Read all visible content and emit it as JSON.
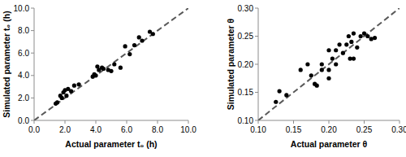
{
  "chart_data": [
    {
      "type": "scatter",
      "x_label": "Actual parameter t₀ (h)",
      "y_label": "Simulated parameter t₀ (h)",
      "x": [
        1.4,
        1.5,
        1.7,
        1.8,
        1.9,
        2.0,
        2.1,
        2.2,
        2.4,
        2.6,
        2.9,
        3.8,
        3.9,
        4.0,
        4.1,
        4.2,
        4.4,
        4.5,
        4.8,
        5.0,
        5.2,
        5.6,
        5.9,
        6.2,
        6.5,
        6.8,
        7.0,
        7.5,
        7.7
      ],
      "values": [
        1.5,
        1.6,
        2.2,
        2.0,
        2.5,
        2.7,
        2.2,
        2.8,
        2.6,
        3.1,
        3.2,
        3.9,
        4.1,
        4.0,
        4.8,
        4.5,
        4.7,
        4.6,
        4.5,
        4.4,
        5.0,
        4.7,
        6.6,
        5.9,
        6.7,
        7.4,
        7.1,
        7.9,
        7.7
      ],
      "xlim": [
        0,
        10
      ],
      "ylim": [
        0,
        10
      ],
      "xticks": [
        {
          "value": 0,
          "label": "0.0"
        },
        {
          "value": 2,
          "label": "2.0"
        },
        {
          "value": 4,
          "label": "4.0"
        },
        {
          "value": 6,
          "label": "6.0"
        },
        {
          "value": 8,
          "label": "8.0"
        },
        {
          "value": 10,
          "label": "10.0"
        }
      ],
      "yticks": [
        {
          "value": 0,
          "label": "0.0"
        },
        {
          "value": 2,
          "label": "2.0"
        },
        {
          "value": 4,
          "label": "4.0"
        },
        {
          "value": 6,
          "label": "6.0"
        },
        {
          "value": 8,
          "label": "8.0"
        },
        {
          "value": 10,
          "label": "10.0"
        }
      ],
      "color": "#000000",
      "marker": "circle",
      "line_style": "dashed"
    },
    {
      "type": "scatter",
      "x_label": "Actual parameter θ",
      "y_label": "Simulated parameter θ",
      "x": [
        0.125,
        0.13,
        0.14,
        0.16,
        0.17,
        0.175,
        0.18,
        0.183,
        0.19,
        0.19,
        0.2,
        0.2,
        0.205,
        0.21,
        0.21,
        0.2,
        0.215,
        0.22,
        0.225,
        0.228,
        0.23,
        0.232,
        0.235,
        0.235,
        0.24,
        0.245,
        0.25,
        0.255,
        0.26,
        0.265
      ],
      "values": [
        0.133,
        0.152,
        0.145,
        0.19,
        0.2,
        0.18,
        0.165,
        0.162,
        0.19,
        0.2,
        0.175,
        0.19,
        0.21,
        0.2,
        0.225,
        0.225,
        0.235,
        0.22,
        0.235,
        0.25,
        0.21,
        0.24,
        0.21,
        0.255,
        0.23,
        0.25,
        0.255,
        0.25,
        0.245,
        0.247
      ],
      "xlim": [
        0.1,
        0.3
      ],
      "ylim": [
        0.1,
        0.3
      ],
      "xticks": [
        {
          "value": 0.1,
          "label": "0.10"
        },
        {
          "value": 0.15,
          "label": "0.15"
        },
        {
          "value": 0.2,
          "label": "0.20"
        },
        {
          "value": 0.25,
          "label": "0.25"
        },
        {
          "value": 0.3,
          "label": "0.30"
        }
      ],
      "yticks": [
        {
          "value": 0.1,
          "label": "0.10"
        },
        {
          "value": 0.15,
          "label": "0.15"
        },
        {
          "value": 0.2,
          "label": "0.20"
        },
        {
          "value": 0.25,
          "label": "0.25"
        },
        {
          "value": 0.3,
          "label": "0.30"
        }
      ],
      "color": "#000000",
      "marker": "circle",
      "line_style": "dashed"
    }
  ]
}
